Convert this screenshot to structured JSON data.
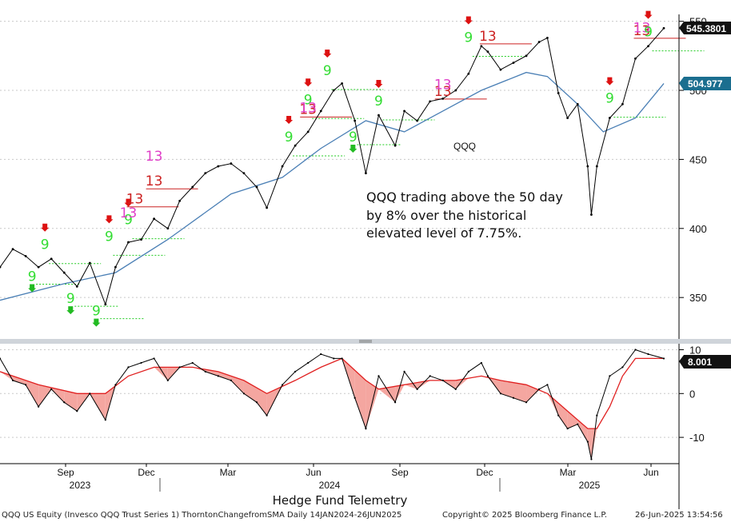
{
  "chart_data": {
    "type": "line",
    "title": "Hedge Fund Telemetry",
    "upper_panel": {
      "series_label": "QQQ",
      "ylim": [
        320,
        555
      ],
      "yticks": [
        350,
        400,
        450,
        500,
        550
      ],
      "price_tag": "545.3801",
      "ma_tag": "504.977",
      "annotation": [
        "QQQ trading above the 50 day",
        "by 8% over the historical",
        "elevated level of 7.75%."
      ],
      "series": [
        {
          "name": "QQQ",
          "x": [
            "2023-07-03",
            "2023-07-17",
            "2023-07-31",
            "2023-08-14",
            "2023-08-28",
            "2023-09-11",
            "2023-09-25",
            "2023-10-09",
            "2023-10-26",
            "2023-11-06",
            "2023-11-20",
            "2023-12-04",
            "2023-12-18",
            "2024-01-02",
            "2024-01-15",
            "2024-01-29",
            "2024-02-12",
            "2024-02-26",
            "2024-03-11",
            "2024-03-25",
            "2024-04-08",
            "2024-04-19",
            "2024-05-06",
            "2024-05-20",
            "2024-06-03",
            "2024-06-17",
            "2024-07-01",
            "2024-07-10",
            "2024-07-24",
            "2024-08-05",
            "2024-08-19",
            "2024-09-06",
            "2024-09-16",
            "2024-09-30",
            "2024-10-14",
            "2024-10-28",
            "2024-11-11",
            "2024-11-25",
            "2024-12-09",
            "2024-12-16",
            "2024-12-30",
            "2025-01-13",
            "2025-01-27",
            "2025-02-10",
            "2025-02-19",
            "2025-03-03",
            "2025-03-13",
            "2025-03-24",
            "2025-04-04",
            "2025-04-08",
            "2025-04-14",
            "2025-04-28",
            "2025-05-12",
            "2025-05-26",
            "2025-06-09",
            "2025-06-26"
          ],
          "values": [
            372,
            385,
            380,
            372,
            378,
            368,
            358,
            375,
            345,
            372,
            390,
            392,
            407,
            400,
            420,
            430,
            440,
            445,
            447,
            440,
            430,
            415,
            445,
            460,
            470,
            485,
            500,
            505,
            478,
            440,
            482,
            460,
            485,
            478,
            492,
            494,
            500,
            512,
            532,
            528,
            515,
            520,
            525,
            535,
            538,
            498,
            480,
            490,
            445,
            410,
            445,
            480,
            490,
            523,
            532,
            545
          ]
        },
        {
          "name": "50 day MA",
          "x": [
            "2023-07-03",
            "2023-09-11",
            "2023-11-06",
            "2024-01-02",
            "2024-03-11",
            "2024-05-06",
            "2024-06-17",
            "2024-08-05",
            "2024-09-16",
            "2024-10-28",
            "2024-12-09",
            "2025-01-27",
            "2025-02-19",
            "2025-03-24",
            "2025-04-21",
            "2025-05-26",
            "2025-06-26"
          ],
          "values": [
            348,
            360,
            368,
            392,
            425,
            437,
            458,
            478,
            470,
            485,
            500,
            513,
            510,
            490,
            470,
            480,
            505
          ]
        }
      ],
      "td_labels": [
        {
          "x": "2023-08-07",
          "y": 362,
          "text": "9",
          "type": "setup",
          "dir": "down"
        },
        {
          "x": "2023-08-21",
          "y": 385,
          "text": "9",
          "type": "setup",
          "dir": "up"
        },
        {
          "x": "2023-09-18",
          "y": 346,
          "text": "9",
          "type": "setup",
          "dir": "down"
        },
        {
          "x": "2023-10-16",
          "y": 337,
          "text": "9",
          "type": "setup",
          "dir": "down"
        },
        {
          "x": "2023-10-30",
          "y": 391,
          "text": "9",
          "type": "setup",
          "dir": "up"
        },
        {
          "x": "2023-11-20",
          "y": 403,
          "text": "9",
          "type": "setup",
          "dir": "up"
        },
        {
          "x": "2023-11-27",
          "y": 418,
          "text": "13",
          "type": "countdown_red"
        },
        {
          "x": "2023-11-20",
          "y": 408,
          "text": "13",
          "type": "countdown_magenta"
        },
        {
          "x": "2023-12-18",
          "y": 431,
          "text": "13",
          "type": "countdown_red"
        },
        {
          "x": "2023-12-18",
          "y": 449,
          "text": "13",
          "type": "countdown_magenta"
        },
        {
          "x": "2024-05-13",
          "y": 463,
          "text": "9",
          "type": "setup",
          "dir": "up"
        },
        {
          "x": "2024-06-03",
          "y": 490,
          "text": "9",
          "type": "setup",
          "dir": "up"
        },
        {
          "x": "2024-06-03",
          "y": 483,
          "text": "13",
          "type": "countdown_red"
        },
        {
          "x": "2024-06-03",
          "y": 484,
          "text": "13",
          "type": "countdown_magenta"
        },
        {
          "x": "2024-06-24",
          "y": 511,
          "text": "9",
          "type": "setup",
          "dir": "up"
        },
        {
          "x": "2024-07-22",
          "y": 463,
          "text": "9",
          "type": "setup",
          "dir": "down"
        },
        {
          "x": "2024-08-19",
          "y": 489,
          "text": "9",
          "type": "setup",
          "dir": "up"
        },
        {
          "x": "2024-10-28",
          "y": 496,
          "text": "13",
          "type": "countdown_red"
        },
        {
          "x": "2024-10-28",
          "y": 501,
          "text": "13",
          "type": "countdown_magenta"
        },
        {
          "x": "2024-11-25",
          "y": 535,
          "text": "9",
          "type": "setup",
          "dir": "up"
        },
        {
          "x": "2024-12-16",
          "y": 536,
          "text": "13",
          "type": "countdown_red"
        },
        {
          "x": "2025-04-28",
          "y": 491,
          "text": "9",
          "type": "setup",
          "dir": "up"
        },
        {
          "x": "2025-06-02",
          "y": 540,
          "text": "13",
          "type": "countdown_red"
        },
        {
          "x": "2025-06-02",
          "y": 542,
          "text": "13",
          "type": "countdown_magenta"
        },
        {
          "x": "2025-06-09",
          "y": 539,
          "text": "9",
          "type": "setup",
          "dir": "up"
        }
      ]
    },
    "lower_panel": {
      "ylim": [
        -16,
        11
      ],
      "yticks": [
        -10,
        0,
        10
      ],
      "value_tag": "8.001",
      "series": [
        {
          "name": "ThorntonChangefromSMA",
          "x": [
            "2023-07-03",
            "2023-07-17",
            "2023-07-31",
            "2023-08-14",
            "2023-08-28",
            "2023-09-11",
            "2023-09-25",
            "2023-10-09",
            "2023-10-26",
            "2023-11-06",
            "2023-11-20",
            "2023-12-04",
            "2023-12-18",
            "2024-01-02",
            "2024-01-15",
            "2024-01-29",
            "2024-02-12",
            "2024-02-26",
            "2024-03-11",
            "2024-03-25",
            "2024-04-08",
            "2024-04-19",
            "2024-05-06",
            "2024-05-20",
            "2024-06-03",
            "2024-06-17",
            "2024-07-01",
            "2024-07-10",
            "2024-07-24",
            "2024-08-05",
            "2024-08-19",
            "2024-09-06",
            "2024-09-16",
            "2024-09-30",
            "2024-10-14",
            "2024-10-28",
            "2024-11-11",
            "2024-11-25",
            "2024-12-09",
            "2024-12-16",
            "2024-12-30",
            "2025-01-13",
            "2025-01-27",
            "2025-02-10",
            "2025-02-19",
            "2025-03-03",
            "2025-03-13",
            "2025-03-24",
            "2025-04-04",
            "2025-04-08",
            "2025-04-14",
            "2025-04-28",
            "2025-05-12",
            "2025-05-26",
            "2025-06-09",
            "2025-06-26"
          ],
          "values": [
            8,
            3,
            2,
            -3,
            1,
            -2,
            -4,
            0,
            -6,
            2,
            6,
            7,
            8,
            3,
            6,
            7,
            5,
            4,
            3,
            0,
            -2,
            -5,
            2,
            5,
            7,
            9,
            8,
            8,
            -1,
            -8,
            4,
            -2,
            5,
            1,
            4,
            3,
            1,
            5,
            7,
            4,
            0,
            -1,
            -2,
            1,
            2,
            -5,
            -8,
            -7,
            -11,
            -15,
            -5,
            4,
            6,
            10,
            9,
            8
          ]
        },
        {
          "name": "Signal",
          "x": [
            "2023-07-03",
            "2023-08-14",
            "2023-09-25",
            "2023-10-26",
            "2023-11-20",
            "2023-12-18",
            "2024-01-29",
            "2024-02-26",
            "2024-03-25",
            "2024-04-19",
            "2024-05-20",
            "2024-06-17",
            "2024-07-10",
            "2024-08-05",
            "2024-08-19",
            "2024-09-16",
            "2024-10-14",
            "2024-11-11",
            "2024-12-09",
            "2024-12-30",
            "2025-01-27",
            "2025-02-19",
            "2025-03-13",
            "2025-04-04",
            "2025-04-14",
            "2025-04-28",
            "2025-05-12",
            "2025-05-26",
            "2025-06-26"
          ],
          "values": [
            5,
            2,
            0,
            0,
            4,
            6,
            6,
            5,
            3,
            0,
            3,
            6,
            8,
            3,
            1,
            2,
            3,
            3,
            4,
            3,
            2,
            0,
            -4,
            -8,
            -8,
            -3,
            4,
            8,
            8
          ]
        }
      ]
    },
    "x_axis": {
      "months": [
        "Sep",
        "Dec",
        "Mar",
        "Jun",
        "Sep",
        "Dec",
        "Mar",
        "Jun"
      ],
      "years": [
        "2023",
        "2024",
        "2025"
      ]
    }
  },
  "footer": {
    "left": "QQQ US Equity (Invesco QQQ Trust Series 1) ThorntonChangefromSMA  Daily 14JAN2024-26JUN2025",
    "copyright": "Copyright© 2025 Bloomberg Finance L.P.",
    "timestamp": "26-Jun-2025 13:54:56"
  },
  "colors": {
    "price": "#000000",
    "ma": "#4a7fb5",
    "signal": "#e02020",
    "fill": "#f4a6a0",
    "setup": "#33dd33",
    "countdown_red": "#cc2222",
    "countdown_magenta": "#e040c8",
    "level_green": "#22cc22",
    "level_red": "#cc2222",
    "tag_price": "#111111",
    "tag_ma": "#1b6e8f",
    "tag_value": "#111111"
  }
}
